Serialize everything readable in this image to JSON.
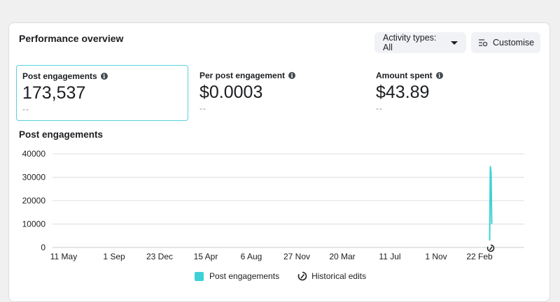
{
  "header": {
    "title": "Performance overview",
    "activity_button": "Activity types: All",
    "customise_button": "Customise"
  },
  "metrics": [
    {
      "label": "Post engagements",
      "value": "173,537",
      "change": "--"
    },
    {
      "label": "Per post engagement",
      "value": "$0.0003",
      "change": "--"
    },
    {
      "label": "Amount spent",
      "value": "$43.89",
      "change": "--"
    }
  ],
  "colors": {
    "series": "#3dd1d6",
    "selected_border": "#57d0dc"
  },
  "chart_data": {
    "type": "line",
    "title": "Post engagements",
    "ylim": [
      0,
      40000
    ],
    "y_ticks": [
      "40000",
      "30000",
      "20000",
      "10000",
      "0"
    ],
    "x_ticks": [
      "11 May",
      "1 Sep",
      "23 Dec",
      "15 Apr",
      "6 Aug",
      "27 Nov",
      "20 Mar",
      "11 Jul",
      "1 Nov",
      "22 Feb"
    ],
    "grid": true,
    "series": [
      {
        "name": "Post engagements",
        "points": [
          {
            "x": "22 Feb",
            "y": 3000
          },
          {
            "x": "22 Feb",
            "y": 34500
          },
          {
            "x": "22 Feb",
            "y": 32000
          },
          {
            "x": "22 Feb",
            "y": 10000
          }
        ]
      }
    ],
    "annotations": [
      {
        "x": "22 Feb",
        "label": "Historical edits"
      }
    ],
    "legend": {
      "position": "bottom",
      "items": [
        "Post engagements",
        "Historical edits"
      ]
    }
  }
}
